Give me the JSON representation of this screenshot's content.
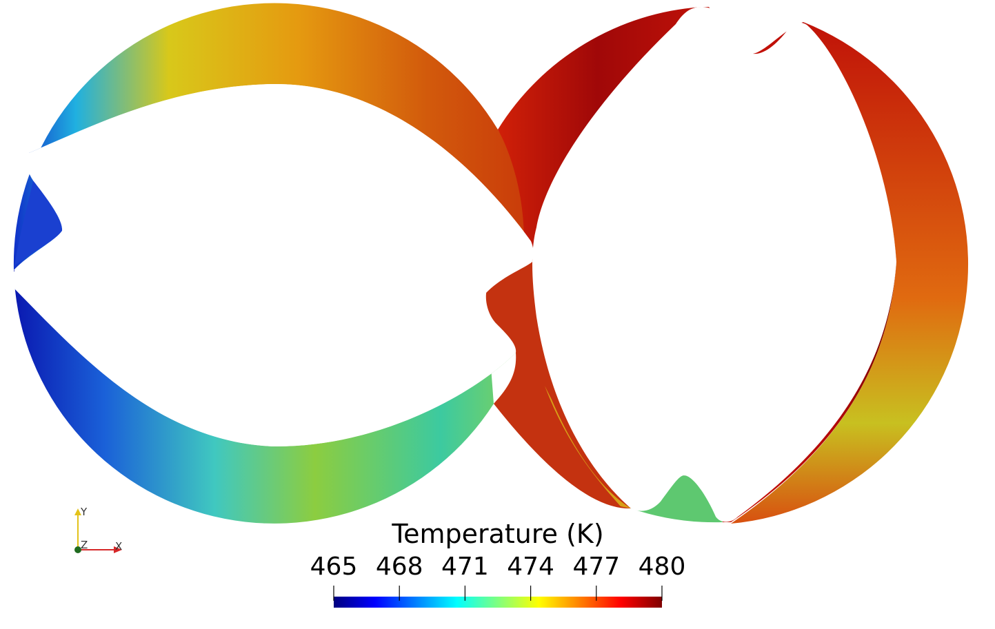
{
  "colorbar": {
    "title": "Temperature (K)",
    "ticks": [
      "465",
      "468",
      "471",
      "474",
      "477",
      "480"
    ],
    "range": [
      465,
      480
    ],
    "colormap": [
      "#00007f",
      "#0000ff",
      "#00ffff",
      "#7fff7f",
      "#ffff00",
      "#ff0000",
      "#7f0000"
    ]
  },
  "axes_triad": {
    "y_label": "Y",
    "z_label": "Z",
    "x_label": "X",
    "colors": {
      "x": "#d62728",
      "y": "#e3c21a",
      "z": "#1f6b1f"
    }
  }
}
